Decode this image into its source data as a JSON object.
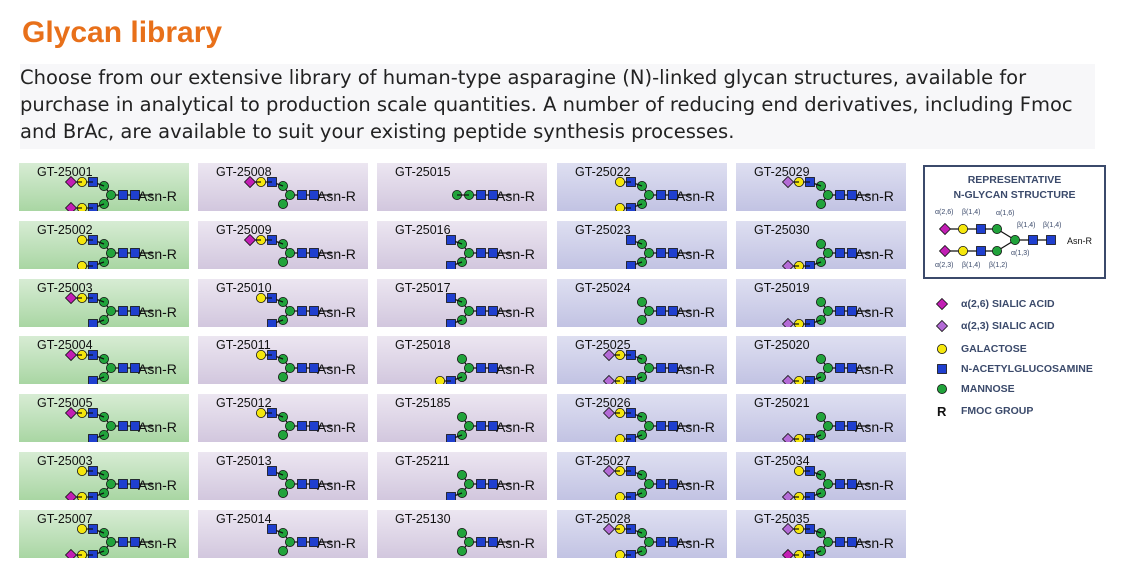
{
  "title": "Glycan library",
  "intro": "Choose from our extensive library of human-type asparagine (N)-linked glycan structures, available for purchase in analytical to production scale quantities. A number of reducing end derivatives, including Fmoc and BrAc, are available to suit your existing peptide synthesis processes.",
  "end_label": "Asn-R",
  "colors": {
    "title": "#e8701a",
    "sialic_a26": "#c21fb4",
    "sialic_a23": "#b36bd6",
    "galactose": "#f5e70d",
    "glcnac": "#1f3fcf",
    "mannose": "#21a33b"
  },
  "columns": [
    {
      "color": "green",
      "cards": [
        {
          "id": "GT-25001",
          "s": "a26a26"
        },
        {
          "id": "GT-25002",
          "s": "g2"
        },
        {
          "id": "GT-25003",
          "s": "a26g"
        },
        {
          "id": "GT-25004",
          "s": "a26g"
        },
        {
          "id": "GT-25005",
          "s": "a26g"
        },
        {
          "id": "GT-25003",
          "s": "ga26"
        },
        {
          "id": "GT-25007",
          "s": "ga26"
        }
      ]
    },
    {
      "color": "purple",
      "cards": [
        {
          "id": "GT-25008",
          "s": "a26one"
        },
        {
          "id": "GT-25009",
          "s": "a26one"
        },
        {
          "id": "GT-25010",
          "s": "g1n"
        },
        {
          "id": "GT-25011",
          "s": "g1"
        },
        {
          "id": "GT-25012",
          "s": "g1"
        },
        {
          "id": "GT-25013",
          "s": "n1"
        },
        {
          "id": "GT-25014",
          "s": "n1"
        }
      ]
    },
    {
      "color": "purple",
      "cards": [
        {
          "id": "GT-25015",
          "s": "core"
        },
        {
          "id": "GT-25016",
          "s": "nn"
        },
        {
          "id": "GT-25017",
          "s": "nn"
        },
        {
          "id": "GT-25018",
          "s": "g1low"
        },
        {
          "id": "GT-25185",
          "s": "n1low"
        },
        {
          "id": "GT-25211",
          "s": "n1low"
        },
        {
          "id": "GT-25130",
          "s": "m3"
        }
      ]
    },
    {
      "color": "blue",
      "cards": [
        {
          "id": "GT-25022",
          "s": "g2"
        },
        {
          "id": "GT-25023",
          "s": "nn"
        },
        {
          "id": "GT-25024",
          "s": "m3"
        },
        {
          "id": "GT-25025",
          "s": "a23a23"
        },
        {
          "id": "GT-25026",
          "s": "a23g"
        },
        {
          "id": "GT-25027",
          "s": "a23g"
        },
        {
          "id": "GT-25028",
          "s": "a23g"
        }
      ]
    },
    {
      "color": "blue",
      "cards": [
        {
          "id": "GT-25029",
          "s": "a23core"
        },
        {
          "id": "GT-25030",
          "s": "a23low"
        },
        {
          "id": "GT-25019",
          "s": "a23low"
        },
        {
          "id": "GT-25020",
          "s": "a23low"
        },
        {
          "id": "GT-25021",
          "s": "a23low"
        },
        {
          "id": "GT-25034",
          "s": "mixa23a26"
        },
        {
          "id": "GT-25035",
          "s": "mixa26a23"
        }
      ]
    }
  ],
  "legend": {
    "box_title_1": "REPRESENTATIVE",
    "box_title_2": "N-GLYCAN STRUCTURE",
    "link_a26": "α(2,6)",
    "link_b14": "β(1,4)",
    "link_a16": "α(1,6)",
    "link_a23": "α(2,3)",
    "link_b12": "β(1,2)",
    "link_a13": "α(1,3)",
    "items": [
      {
        "sym": "a26",
        "label": "α(2,6) SIALIC ACID"
      },
      {
        "sym": "a23",
        "label": "α(2,3) SIALIC ACID"
      },
      {
        "sym": "gal",
        "label": "GALACTOSE"
      },
      {
        "sym": "glcnac",
        "label": "N-ACETYLGLUCOSAMINE"
      },
      {
        "sym": "man",
        "label": "MANNOSE"
      },
      {
        "sym": "R",
        "label": "FMOC GROUP"
      }
    ]
  }
}
